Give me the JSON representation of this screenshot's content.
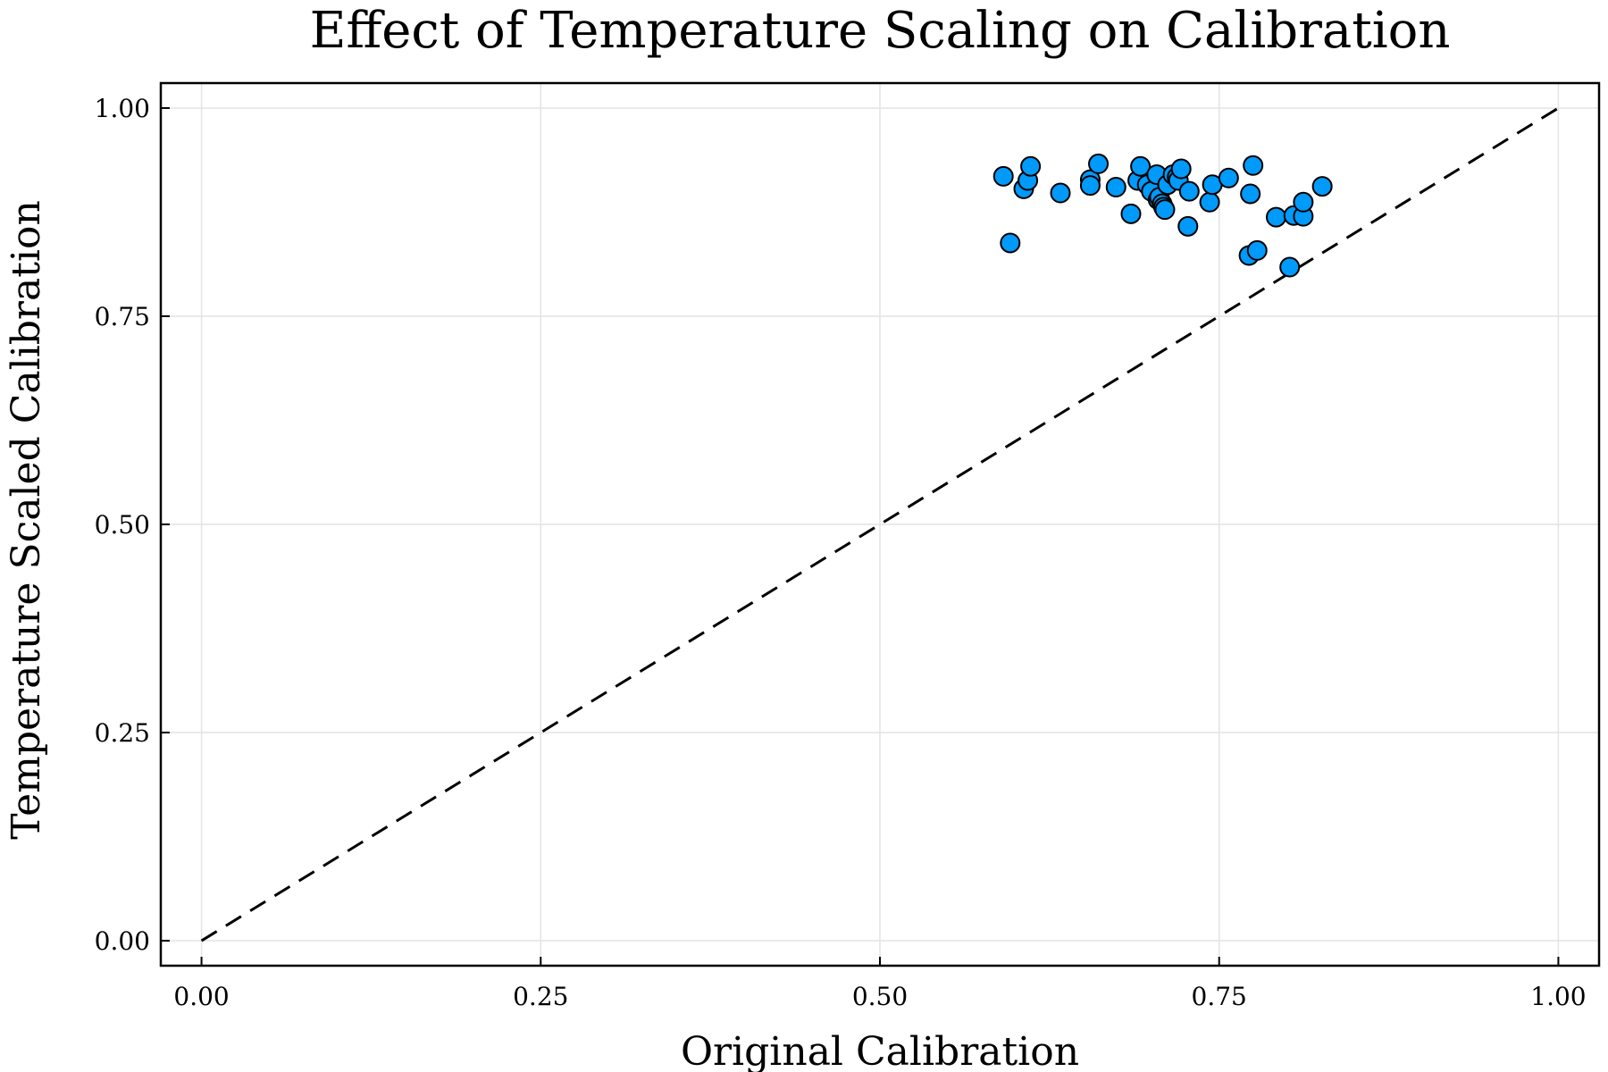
{
  "chart_data": {
    "type": "scatter",
    "title": "Effect of Temperature Scaling on Calibration",
    "xlabel": "Original Calibration",
    "ylabel": "Temperature Scaled Calibration",
    "xlim": [
      -0.03,
      1.03
    ],
    "ylim": [
      -0.03,
      1.03
    ],
    "x_ticks": [
      0.0,
      0.25,
      0.5,
      0.75,
      1.0
    ],
    "x_tick_labels": [
      "0.00",
      "0.25",
      "0.50",
      "0.75",
      "1.00"
    ],
    "y_ticks": [
      0.0,
      0.25,
      0.5,
      0.75,
      1.0
    ],
    "y_tick_labels": [
      "0.00",
      "0.25",
      "0.50",
      "0.75",
      "1.00"
    ],
    "grid": true,
    "legend": "none",
    "reference_line": {
      "x": [
        0,
        1
      ],
      "y": [
        0,
        1
      ],
      "style": "dashed",
      "color": "#000000"
    },
    "marker_color": "#009AFA",
    "marker_edge_color": "#000000",
    "series": [
      {
        "x": [
          0.591,
          0.596,
          0.606,
          0.609,
          0.611,
          0.633,
          0.655,
          0.655,
          0.661,
          0.674,
          0.685,
          0.69,
          0.692,
          0.697,
          0.7,
          0.704,
          0.705,
          0.706,
          0.708,
          0.709,
          0.71,
          0.712,
          0.716,
          0.719,
          0.72,
          0.722,
          0.727,
          0.728,
          0.743,
          0.745,
          0.757,
          0.772,
          0.773,
          0.775,
          0.778,
          0.792,
          0.802,
          0.805,
          0.812,
          0.812,
          0.826
        ],
        "y": [
          0.918,
          0.838,
          0.903,
          0.913,
          0.93,
          0.898,
          0.914,
          0.907,
          0.933,
          0.905,
          0.873,
          0.913,
          0.93,
          0.908,
          0.9,
          0.92,
          0.89,
          0.893,
          0.885,
          0.881,
          0.878,
          0.908,
          0.92,
          0.917,
          0.913,
          0.927,
          0.858,
          0.9,
          0.887,
          0.908,
          0.916,
          0.823,
          0.897,
          0.931,
          0.829,
          0.869,
          0.809,
          0.871,
          0.87,
          0.887,
          0.906
        ]
      }
    ]
  }
}
